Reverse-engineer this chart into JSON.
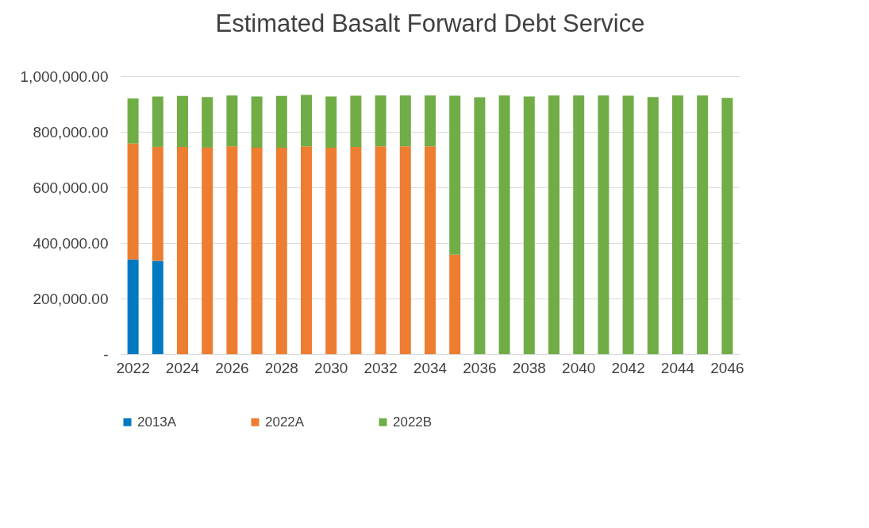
{
  "chart_data": {
    "type": "bar",
    "title": "Estimated Basalt Forward Debt Service",
    "stacked": true,
    "grid": "y",
    "legend": "bottom",
    "categories": [
      "2022",
      null,
      "2024",
      null,
      "2026",
      null,
      "2028",
      null,
      "2030",
      null,
      "2032",
      null,
      "2034",
      null,
      "2036",
      null,
      "2038",
      null,
      "2040",
      null,
      "2042",
      null,
      "2044",
      null,
      "2046"
    ],
    "ylim": [
      0,
      1000000
    ],
    "yticks": [
      {
        "value": 0,
        "label": "-"
      },
      {
        "value": 200000,
        "label": "200,000.00"
      },
      {
        "value": 400000,
        "label": "400,000.00"
      },
      {
        "value": 600000,
        "label": "600,000.00"
      },
      {
        "value": 800000,
        "label": "800,000.00"
      },
      {
        "value": 1000000,
        "label": "1,000,000.00"
      }
    ],
    "series": [
      {
        "name": "2013A",
        "color": "#0079c1",
        "values": [
          341000,
          336000,
          null,
          null,
          null,
          null,
          null,
          null,
          null,
          null,
          null,
          null,
          null,
          null,
          null,
          null,
          null,
          null,
          null,
          null,
          null,
          null,
          null,
          null,
          null
        ]
      },
      {
        "name": "2022A",
        "color": "#ed7d31",
        "values": [
          417000,
          410000,
          746000,
          743000,
          748000,
          743000,
          743000,
          748000,
          743000,
          746000,
          748000,
          748000,
          748000,
          358000,
          null,
          null,
          null,
          null,
          null,
          null,
          null,
          null,
          null,
          null,
          null
        ]
      },
      {
        "name": "2022B",
        "color": "#70ad47",
        "values": [
          162000,
          181000,
          183000,
          182000,
          183000,
          184000,
          186000,
          185000,
          184000,
          184000,
          183000,
          183000,
          183000,
          572000,
          924000,
          931000,
          927000,
          931000,
          931000,
          931000,
          930000,
          925000,
          931000,
          931000,
          922000
        ]
      }
    ]
  }
}
